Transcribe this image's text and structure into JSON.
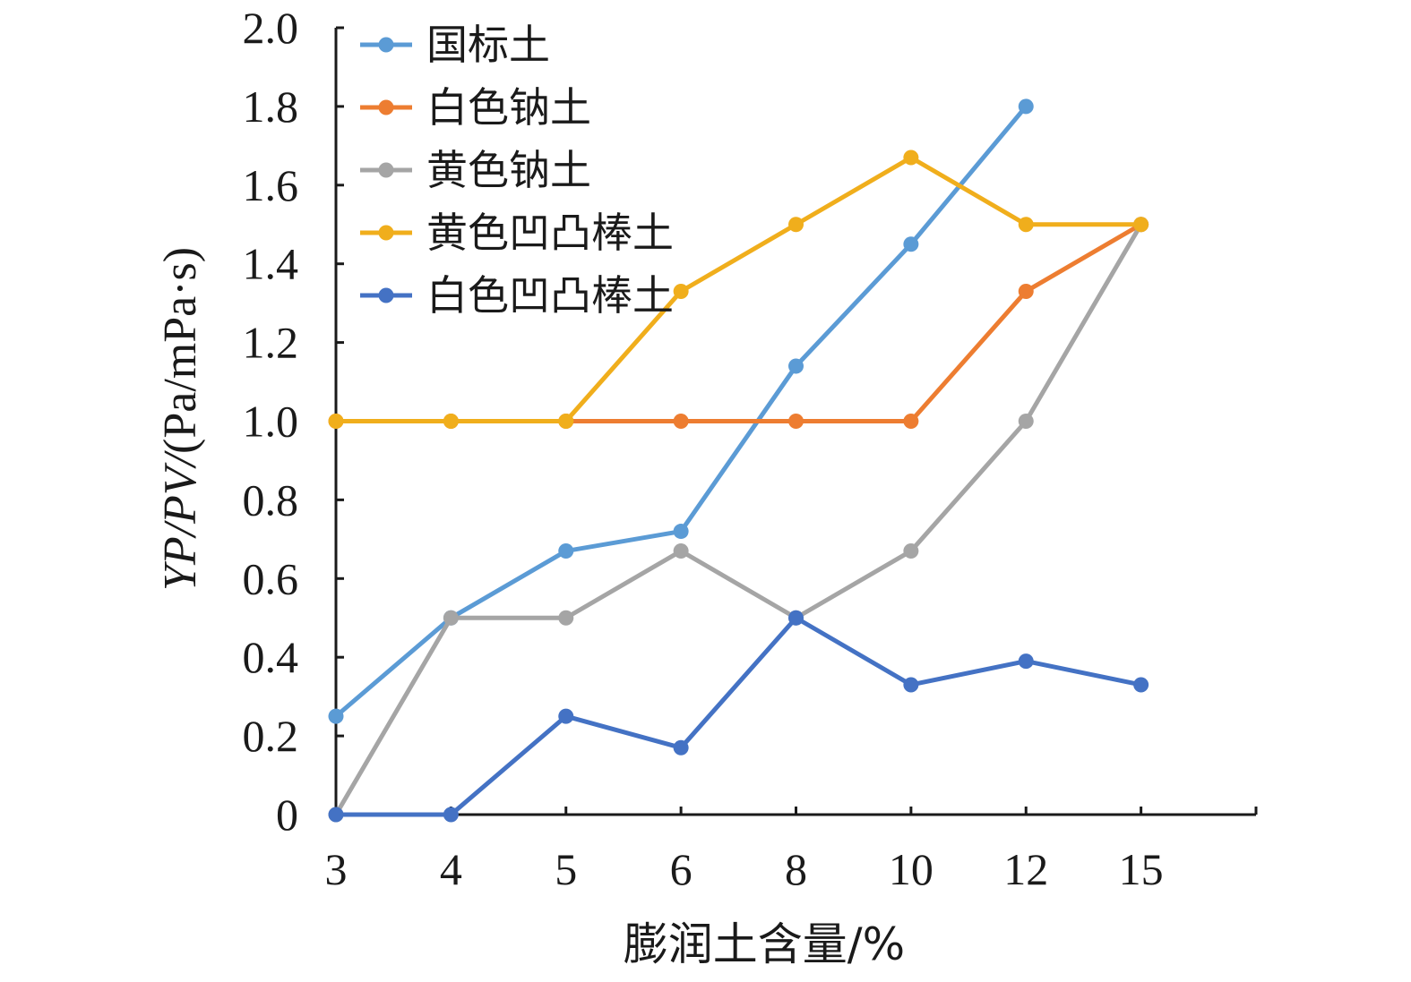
{
  "chart_data": {
    "type": "line",
    "categories": [
      "3",
      "4",
      "5",
      "6",
      "8",
      "10",
      "12",
      "15"
    ],
    "xlabel": "膨润土含量/%",
    "ylabel": {
      "italic": "YP/PV/",
      "normal": "(Pa/mPa·s)"
    },
    "ylim": [
      0,
      2.0
    ],
    "yticks": [
      "0",
      "0.2",
      "0.4",
      "0.6",
      "0.8",
      "1.0",
      "1.2",
      "1.4",
      "1.6",
      "1.8",
      "2.0"
    ],
    "legend_position": "top-left",
    "grid": false,
    "series": [
      {
        "name": "国标土",
        "color": "#5b9bd5",
        "values": [
          0.25,
          0.5,
          0.67,
          0.72,
          1.14,
          1.45,
          1.8,
          null
        ]
      },
      {
        "name": "白色钠土",
        "color": "#ed7d31",
        "values": [
          1.0,
          1.0,
          1.0,
          1.0,
          1.0,
          1.0,
          1.33,
          1.5
        ]
      },
      {
        "name": "黄色钠土",
        "color": "#a5a5a5",
        "values": [
          0,
          0.5,
          0.5,
          0.67,
          0.5,
          0.67,
          1.0,
          1.5
        ]
      },
      {
        "name": "黄色凹凸棒土",
        "color": "#f0ae1c",
        "values": [
          1.0,
          1.0,
          1.0,
          1.33,
          1.5,
          1.67,
          1.5,
          1.5
        ]
      },
      {
        "name": "白色凹凸棒土",
        "color": "#4472c4",
        "values": [
          0,
          0,
          0.25,
          0.17,
          0.5,
          0.33,
          0.39,
          0.33
        ]
      }
    ]
  }
}
